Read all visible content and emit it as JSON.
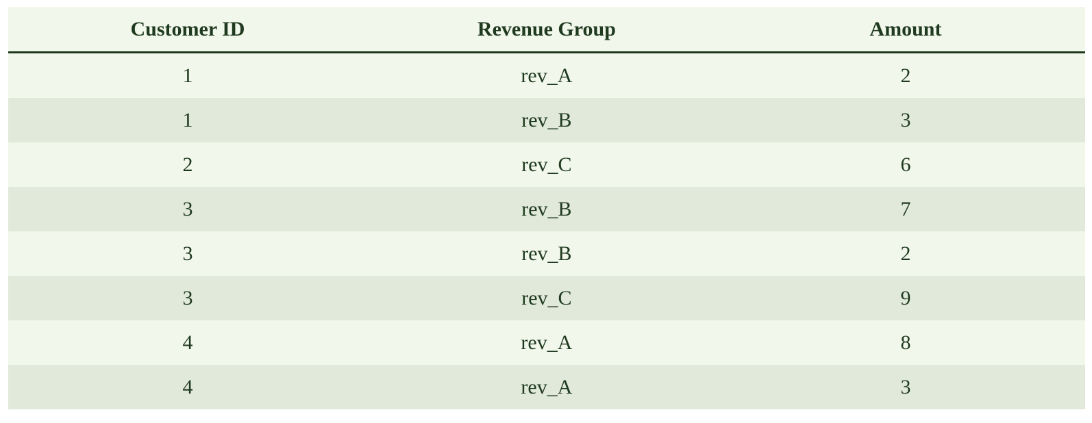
{
  "table": {
    "headers": [
      "Customer ID",
      "Revenue Group",
      "Amount"
    ],
    "rows": [
      [
        "1",
        "rev_A",
        "2"
      ],
      [
        "1",
        "rev_B",
        "3"
      ],
      [
        "2",
        "rev_C",
        "6"
      ],
      [
        "3",
        "rev_B",
        "7"
      ],
      [
        "3",
        "rev_B",
        "2"
      ],
      [
        "3",
        "rev_C",
        "9"
      ],
      [
        "4",
        "rev_A",
        "8"
      ],
      [
        "4",
        "rev_A",
        "3"
      ]
    ]
  }
}
